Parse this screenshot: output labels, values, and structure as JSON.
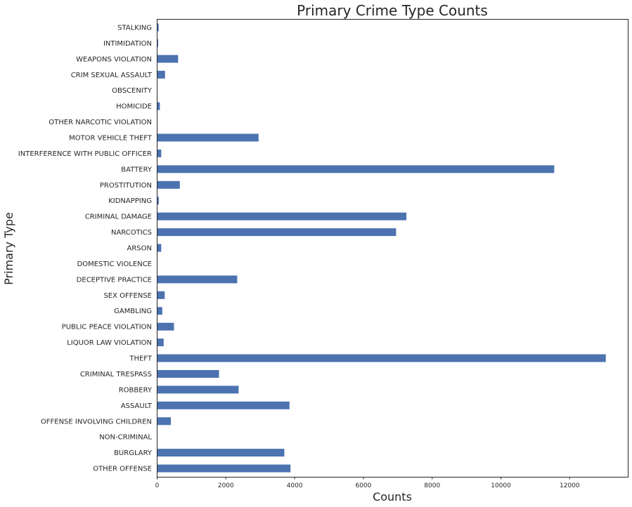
{
  "chart_data": {
    "type": "bar",
    "orientation": "horizontal",
    "title": "Primary Crime Type Counts",
    "xlabel": "Counts",
    "ylabel": "Primary Type",
    "xlim": [
      0,
      13700
    ],
    "xticks": [
      0,
      2000,
      4000,
      6000,
      8000,
      10000,
      12000
    ],
    "grid": false,
    "bar_color": "#4c72b0",
    "categories": [
      "STALKING",
      "INTIMIDATION",
      "WEAPONS VIOLATION",
      "CRIM SEXUAL ASSAULT",
      "OBSCENITY",
      "HOMICIDE",
      "OTHER NARCOTIC VIOLATION",
      "MOTOR VEHICLE THEFT",
      "INTERFERENCE WITH PUBLIC OFFICER",
      "BATTERY",
      "PROSTITUTION",
      "KIDNAPPING",
      "CRIMINAL DAMAGE",
      "NARCOTICS",
      "ARSON",
      "DOMESTIC VIOLENCE",
      "DECEPTIVE PRACTICE",
      "SEX OFFENSE",
      "GAMBLING",
      "PUBLIC PEACE VIOLATION",
      "LIQUOR LAW VIOLATION",
      "THEFT",
      "CRIMINAL TRESPASS",
      "ROBBERY",
      "ASSAULT",
      "OFFENSE INVOLVING CHILDREN",
      "NON-CRIMINAL",
      "BURGLARY",
      "OTHER OFFENSE"
    ],
    "values": [
      45,
      30,
      610,
      230,
      10,
      80,
      5,
      2950,
      120,
      11550,
      660,
      50,
      7250,
      6950,
      120,
      5,
      2330,
      220,
      150,
      490,
      190,
      13050,
      1800,
      2370,
      3850,
      400,
      10,
      3700,
      3880
    ]
  }
}
